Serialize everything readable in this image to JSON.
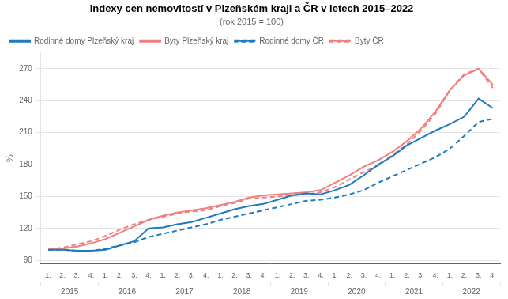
{
  "chart_data": {
    "type": "line",
    "title": "Indexy cen nemovitostí v Plzeňském kraji a ČR v letech 2015–2022",
    "subtitle": "(rok 2015 = 100)",
    "y_label": "%",
    "categories": [
      "1.",
      "2.",
      "3.",
      "4.",
      "1.",
      "2.",
      "3.",
      "4.",
      "1.",
      "2.",
      "3.",
      "4.",
      "1.",
      "2.",
      "3.",
      "4.",
      "1.",
      "2.",
      "3.",
      "4.",
      "1.",
      "2.",
      "3.",
      "4.",
      "1.",
      "2.",
      "3.",
      "4.",
      "1.",
      "2.",
      "3.",
      "4."
    ],
    "years": [
      2015,
      2016,
      2017,
      2018,
      2019,
      2020,
      2021,
      2022
    ],
    "series": [
      {
        "name": "Rodinné domy\nPlzeňský kraj",
        "color": "#1F7BC0",
        "line_style": "solid",
        "values": [
          100,
          100,
          99,
          99,
          100,
          104,
          108,
          120,
          121,
          124,
          126,
          130,
          134,
          138,
          141,
          143,
          147,
          151,
          153,
          152,
          156,
          161,
          170,
          180,
          188,
          198,
          205,
          212,
          218,
          225,
          242,
          233
        ]
      },
      {
        "name": "Byty\nPlzeňský kraj",
        "color": "#F08080",
        "line_style": "solid",
        "values": [
          100,
          101,
          103,
          106,
          110,
          116,
          122,
          128,
          132,
          135,
          137,
          139,
          142,
          145,
          149,
          151,
          152,
          153,
          154,
          156,
          163,
          170,
          178,
          184,
          192,
          202,
          214,
          230,
          250,
          264,
          270,
          255
        ]
      },
      {
        "name": "Rodinné domy\nČR",
        "color": "#1F7BC0",
        "line_style": "dashed",
        "values": [
          100,
          100,
          99,
          99,
          101,
          104,
          107,
          112,
          115,
          118,
          121,
          124,
          128,
          131,
          134,
          137,
          140,
          143,
          146,
          147,
          149,
          152,
          156,
          163,
          169,
          175,
          181,
          187,
          195,
          207,
          220,
          223
        ]
      },
      {
        "name": "Byty\nČR",
        "color": "#F08080",
        "line_style": "dashed",
        "values": [
          100,
          102,
          105,
          108,
          113,
          119,
          124,
          128,
          131,
          134,
          136,
          137,
          141,
          144,
          148,
          149,
          150,
          151,
          152,
          154,
          159,
          166,
          173,
          179,
          189,
          199,
          212,
          228,
          250,
          265,
          270,
          252
        ]
      }
    ],
    "ylim": [
      87,
      285
    ],
    "yticks": [
      90,
      120,
      150,
      180,
      210,
      240,
      270
    ],
    "grid": true,
    "legend": "upper left"
  }
}
